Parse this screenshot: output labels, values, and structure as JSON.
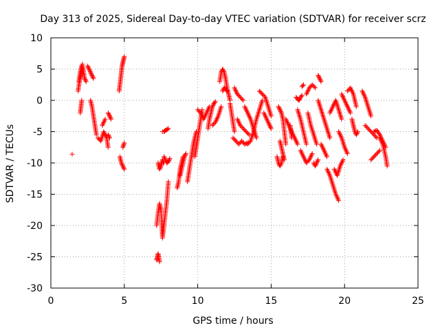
{
  "chart_data": {
    "type": "scatter",
    "title": "Day 313 of 2025, Sidereal Day-to-day VTEC variation (SDTVAR) for receiver scrz",
    "xlabel": "GPS time / hours",
    "ylabel": "SDTVAR / TECUs",
    "xlim": [
      0,
      25
    ],
    "ylim": [
      -30,
      10
    ],
    "xticks": [
      0,
      5,
      10,
      15,
      20,
      25
    ],
    "yticks": [
      -30,
      -25,
      -20,
      -15,
      -10,
      -5,
      0,
      5,
      10
    ],
    "grid": true,
    "marker": "+",
    "series_color": "#ff0000",
    "series": [
      {
        "name": "SDTVAR",
        "segments": [
          {
            "x": [
              1.45
            ],
            "y": [
              -8.6
            ]
          },
          {
            "x": [
              1.9,
              2.0,
              2.1,
              2.2,
              2.3,
              2.4
            ],
            "y": [
              3.0,
              4.5,
              5.5,
              5.0,
              3.5,
              3.0
            ]
          },
          {
            "x": [
              1.85,
              1.95,
              2.05,
              2.15
            ],
            "y": [
              1.5,
              3.0,
              4.0,
              5.8
            ]
          },
          {
            "x": [
              2.0,
              2.05,
              2.1
            ],
            "y": [
              -2.0,
              -1.0,
              0.0
            ]
          },
          {
            "x": [
              2.5,
              2.6,
              2.7,
              2.8,
              2.9
            ],
            "y": [
              5.5,
              5.0,
              4.5,
              4.0,
              3.5
            ]
          },
          {
            "x": [
              2.7,
              2.8,
              2.9,
              3.0,
              3.1
            ],
            "y": [
              0.0,
              -1.0,
              -2.5,
              -4.0,
              -5.5
            ]
          },
          {
            "x": [
              3.2,
              3.4,
              3.6,
              3.8,
              3.9
            ],
            "y": [
              -6.0,
              -6.5,
              -5.0,
              -6.0,
              -7.5
            ]
          },
          {
            "x": [
              3.5,
              3.7
            ],
            "y": [
              -4.0,
              -3.0
            ]
          },
          {
            "x": [
              3.9,
              4.0,
              4.1
            ],
            "y": [
              -2.0,
              -2.5,
              -3.0
            ]
          },
          {
            "x": [
              3.9,
              4.0
            ],
            "y": [
              -5.5,
              -6.0
            ]
          },
          {
            "x": [
              4.65,
              4.7,
              4.75,
              4.8,
              4.85,
              4.9,
              4.95,
              5.0
            ],
            "y": [
              1.5,
              2.5,
              3.5,
              4.5,
              5.5,
              6.0,
              6.5,
              7.0
            ]
          },
          {
            "x": [
              4.7,
              4.8,
              4.9,
              5.0
            ],
            "y": [
              -9.0,
              -10.0,
              -10.5,
              -11.0
            ]
          },
          {
            "x": [
              4.9,
              5.0
            ],
            "y": [
              -7.5,
              -6.8
            ]
          },
          {
            "x": [
              7.2,
              7.25,
              7.3,
              7.35,
              7.4
            ],
            "y": [
              -25.5,
              -25.0,
              -24.5,
              -25.0,
              -25.8
            ]
          },
          {
            "x": [
              7.2,
              7.3,
              7.4,
              7.5,
              7.6,
              7.7,
              7.8,
              7.9,
              8.0
            ],
            "y": [
              -20.0,
              -18.0,
              -16.5,
              -17.5,
              -22.0,
              -20.0,
              -18.0,
              -16.0,
              -13.0
            ]
          },
          {
            "x": [
              7.3,
              7.4,
              7.5,
              7.6,
              7.7
            ],
            "y": [
              -10.0,
              -11.0,
              -10.5,
              -9.5,
              -10.0
            ]
          },
          {
            "x": [
              7.7,
              7.8,
              7.9,
              8.0,
              8.1
            ],
            "y": [
              -9.0,
              -9.5,
              -10.0,
              -9.8,
              -9.3
            ]
          },
          {
            "x": [
              7.6,
              7.7,
              7.8,
              7.9,
              8.0
            ],
            "y": [
              -5.0,
              -5.0,
              -4.8,
              -4.7,
              -4.5
            ]
          },
          {
            "x": [
              8.6,
              8.7,
              8.8,
              8.9,
              9.0
            ],
            "y": [
              -14.0,
              -13.0,
              -11.0,
              -10.0,
              -9.0
            ]
          },
          {
            "x": [
              8.8,
              8.9,
              9.0,
              9.1,
              9.2
            ],
            "y": [
              -12.0,
              -11.0,
              -10.0,
              -9.0,
              -8.5
            ]
          },
          {
            "x": [
              9.3,
              9.4,
              9.5,
              9.6,
              9.7,
              9.8,
              9.9
            ],
            "y": [
              -13.0,
              -11.5,
              -10.0,
              -8.5,
              -7.0,
              -6.0,
              -5.0
            ]
          },
          {
            "x": [
              9.8,
              9.9,
              10.0,
              10.1,
              10.2,
              10.3
            ],
            "y": [
              -9.0,
              -7.5,
              -6.0,
              -4.5,
              -3.0,
              -1.5
            ]
          },
          {
            "x": [
              10.0,
              10.2,
              10.4,
              10.6,
              10.8
            ],
            "y": [
              -1.5,
              -2.0,
              -3.0,
              -2.0,
              -1.0
            ]
          },
          {
            "x": [
              10.7,
              10.8,
              10.9,
              11.0,
              11.1,
              11.2
            ],
            "y": [
              -4.5,
              -3.0,
              -2.0,
              -1.0,
              -0.5,
              -0.2
            ]
          },
          {
            "x": [
              11.0,
              11.2,
              11.4,
              11.6
            ],
            "y": [
              -4.0,
              -3.5,
              -2.5,
              -1.0
            ]
          },
          {
            "x": [
              11.5,
              11.6,
              11.7,
              11.8,
              11.9,
              12.0,
              12.1,
              12.2
            ],
            "y": [
              3.0,
              4.5,
              5.0,
              4.5,
              3.5,
              2.0,
              1.0,
              0.0
            ]
          },
          {
            "x": [
              11.7,
              11.8,
              11.9,
              12.0
            ],
            "y": [
              1.5,
              2.0,
              1.8,
              1.5
            ]
          },
          {
            "x": [
              12.2,
              12.3,
              12.4,
              12.5
            ],
            "y": [
              -0.5,
              -2.0,
              -3.5,
              -5.0
            ]
          },
          {
            "x": [
              12.4,
              12.6,
              12.8,
              13.0,
              13.2,
              13.4
            ],
            "y": [
              -6.0,
              -6.5,
              -7.0,
              -6.5,
              -7.0,
              -6.8
            ]
          },
          {
            "x": [
              12.5,
              12.7,
              12.9,
              13.1
            ],
            "y": [
              2.0,
              1.0,
              0.5,
              0.0
            ]
          },
          {
            "x": [
              12.7,
              12.9,
              13.1,
              13.3,
              13.5
            ],
            "y": [
              -3.0,
              -4.0,
              -4.5,
              -5.0,
              -5.5
            ]
          },
          {
            "x": [
              13.2,
              13.4,
              13.6,
              13.8,
              14.0
            ],
            "y": [
              -1.0,
              -2.0,
              -3.0,
              -4.5,
              -6.0
            ]
          },
          {
            "x": [
              13.4,
              13.6,
              13.8,
              14.0,
              14.2,
              14.4
            ],
            "y": [
              -7.0,
              -6.5,
              -5.0,
              -3.0,
              -1.5,
              0.0
            ]
          },
          {
            "x": [
              14.2,
              14.4,
              14.6,
              14.8,
              15.0
            ],
            "y": [
              1.5,
              1.0,
              0.5,
              -1.0,
              -2.5
            ]
          },
          {
            "x": [
              14.5,
              14.7,
              14.9,
              15.0
            ],
            "y": [
              -2.0,
              -3.0,
              -4.0,
              -4.5
            ]
          },
          {
            "x": [
              15.4,
              15.5,
              15.6,
              15.7,
              15.8
            ],
            "y": [
              -9.0,
              -10.0,
              -10.5,
              -10.0,
              -9.0
            ]
          },
          {
            "x": [
              15.5,
              15.6,
              15.7,
              15.8,
              15.9,
              16.0
            ],
            "y": [
              -1.0,
              -1.5,
              -2.0,
              -3.0,
              -5.0,
              -7.0
            ]
          },
          {
            "x": [
              15.6,
              15.7,
              15.8,
              15.9
            ],
            "y": [
              -6.5,
              -7.5,
              -8.5,
              -9.5
            ]
          },
          {
            "x": [
              16.0,
              16.2,
              16.4,
              16.6,
              16.8
            ],
            "y": [
              -3.0,
              -4.0,
              -5.0,
              -6.0,
              -7.0
            ]
          },
          {
            "x": [
              16.3,
              16.4
            ],
            "y": [
              -4.0,
              -6.0
            ]
          },
          {
            "x": [
              16.7,
              16.8,
              16.9,
              17.0,
              17.1
            ],
            "y": [
              0.5,
              0.2,
              0.0,
              0.5,
              0.8
            ]
          },
          {
            "x": [
              16.8,
              17.0,
              17.2,
              17.4
            ],
            "y": [
              -1.5,
              -3.0,
              -5.0,
              -7.0
            ]
          },
          {
            "x": [
              17.1,
              17.2
            ],
            "y": [
              2.2,
              2.5
            ]
          },
          {
            "x": [
              17.0,
              17.2,
              17.4,
              17.6,
              17.8
            ],
            "y": [
              -8.0,
              -9.0,
              -10.0,
              -9.5,
              -8.5
            ]
          },
          {
            "x": [
              17.4,
              17.6,
              17.8,
              18.0
            ],
            "y": [
              1.0,
              2.0,
              2.5,
              2.0
            ]
          },
          {
            "x": [
              17.5,
              17.7,
              17.9,
              18.1
            ],
            "y": [
              -2.0,
              -4.0,
              -5.5,
              -7.0
            ]
          },
          {
            "x": [
              17.9,
              18.0,
              18.1,
              18.2
            ],
            "y": [
              -10.0,
              -10.5,
              -10.0,
              -9.5
            ]
          },
          {
            "x": [
              18.2,
              18.3,
              18.4
            ],
            "y": [
              4.0,
              3.5,
              3.0
            ]
          },
          {
            "x": [
              18.2,
              18.4,
              18.6,
              18.8,
              19.0
            ],
            "y": [
              0.0,
              -1.5,
              -3.0,
              -4.5,
              -6.0
            ]
          },
          {
            "x": [
              18.4,
              18.6,
              18.8
            ],
            "y": [
              -7.0,
              -8.0,
              -9.0
            ]
          },
          {
            "x": [
              18.8,
              19.0,
              19.2,
              19.4,
              19.6
            ],
            "y": [
              -11.0,
              -12.0,
              -13.5,
              -15.0,
              -16.0
            ]
          },
          {
            "x": [
              19.0,
              19.2,
              19.4,
              19.6,
              19.8
            ],
            "y": [
              -2.0,
              -1.0,
              0.0,
              -1.5,
              -3.0
            ]
          },
          {
            "x": [
              19.3,
              19.5,
              19.7,
              19.9
            ],
            "y": [
              -11.0,
              -12.0,
              -10.5,
              -9.5
            ]
          },
          {
            "x": [
              19.6,
              19.8,
              20.0,
              20.2
            ],
            "y": [
              -5.0,
              -6.0,
              -7.5,
              -8.5
            ]
          },
          {
            "x": [
              19.8,
              20.0,
              20.2,
              20.4
            ],
            "y": [
              1.0,
              0.0,
              -1.0,
              -2.0
            ]
          },
          {
            "x": [
              20.2,
              20.4,
              20.6,
              20.8
            ],
            "y": [
              1.5,
              2.0,
              1.0,
              -1.0
            ]
          },
          {
            "x": [
              20.5,
              20.6,
              20.7,
              20.8,
              20.9
            ],
            "y": [
              -3.0,
              -4.0,
              -5.0,
              -5.5,
              -5.0
            ]
          },
          {
            "x": [
              21.2,
              21.4,
              21.6,
              21.8
            ],
            "y": [
              1.5,
              0.5,
              -1.0,
              -2.5
            ]
          },
          {
            "x": [
              21.4,
              21.6,
              21.8,
              22.0,
              22.2
            ],
            "y": [
              -4.0,
              -4.5,
              -5.0,
              -5.5,
              -6.0
            ]
          },
          {
            "x": [
              21.8,
              22.0,
              22.2,
              22.4
            ],
            "y": [
              -9.5,
              -9.0,
              -8.5,
              -8.0
            ]
          },
          {
            "x": [
              22.0,
              22.2,
              22.4,
              22.6,
              22.8
            ],
            "y": [
              -5.0,
              -4.8,
              -5.5,
              -6.5,
              -7.5
            ]
          },
          {
            "x": [
              22.4,
              22.6,
              22.8,
              22.9
            ],
            "y": [
              -6.0,
              -7.0,
              -9.0,
              -10.5
            ]
          }
        ]
      }
    ]
  }
}
